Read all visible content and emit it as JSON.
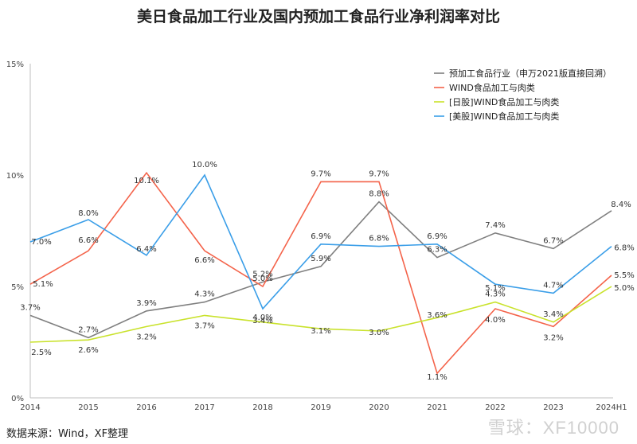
{
  "chart_data": {
    "type": "line",
    "title": "美日食品加工行业及国内预加工食品行业净利润率对比",
    "x": [
      "2014",
      "2015",
      "2016",
      "2017",
      "2018",
      "2019",
      "2020",
      "2021",
      "2022",
      "2023",
      "2024H1"
    ],
    "y_ticks": [
      "0%",
      "5%",
      "10%",
      "15%"
    ],
    "ylim": [
      0,
      15
    ],
    "grid": false,
    "legend_position": "top-right",
    "series": [
      {
        "name": "预加工食品行业（申万2021版直接回溯）",
        "color": "#7f7f7f",
        "values": [
          3.7,
          2.7,
          3.9,
          4.3,
          5.2,
          5.9,
          8.8,
          6.3,
          7.4,
          6.7,
          8.4
        ],
        "labels": [
          "3.7%",
          "2.7%",
          "3.9%",
          "4.3%",
          "5.2%",
          "5.9%",
          "8.8%",
          "6.3%",
          "7.4%",
          "6.7%",
          "8.4%"
        ]
      },
      {
        "name": "WIND食品加工与肉类",
        "color": "#f4634a",
        "values": [
          5.1,
          6.6,
          10.1,
          6.6,
          5.0,
          9.7,
          9.7,
          1.1,
          4.0,
          3.2,
          5.5
        ],
        "labels": [
          "5.1%",
          "6.6%",
          "10.1%",
          "6.6%",
          "5.0%",
          "9.7%",
          "9.7%",
          "1.1%",
          "4.0%",
          "3.2%",
          "5.5%"
        ]
      },
      {
        "name": "[日股]WIND食品加工与肉类",
        "color": "#c9e22b",
        "values": [
          2.5,
          2.6,
          3.2,
          3.7,
          3.4,
          3.1,
          3.0,
          3.6,
          4.3,
          3.4,
          5.0
        ],
        "labels": [
          "2.5%",
          "2.6%",
          "3.2%",
          "3.7%",
          "3.4%",
          "3.1%",
          "3.0%",
          "3.6%",
          "4.3%",
          "3.4%",
          "5.0%"
        ]
      },
      {
        "name": "[美股]WIND食品加工与肉类",
        "color": "#3a9ee8",
        "values": [
          7.0,
          8.0,
          6.4,
          10.0,
          4.0,
          6.9,
          6.8,
          6.9,
          5.1,
          4.7,
          6.8
        ],
        "labels": [
          "7.0%",
          "8.0%",
          "6.4%",
          "10.0%",
          "4.0%",
          "6.9%",
          "6.8%",
          "6.9%",
          "5.1%",
          "4.7%",
          "6.8%"
        ]
      }
    ]
  },
  "source": "数据来源：Wind，XF整理",
  "watermark": "雪球：XF10000"
}
